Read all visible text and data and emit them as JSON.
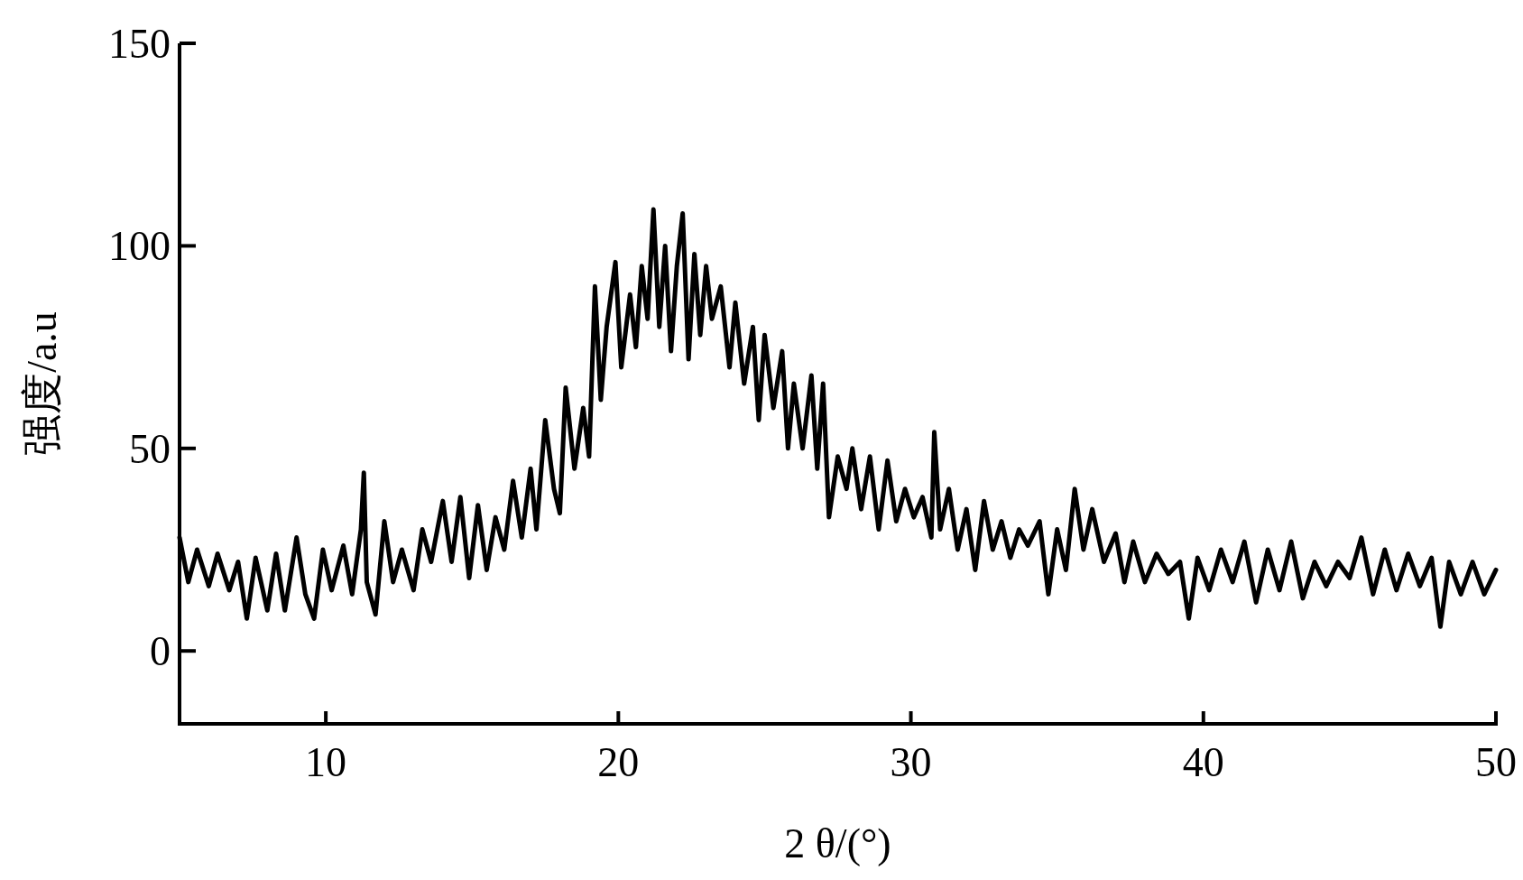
{
  "chart_data": {
    "type": "line",
    "xlabel": "2 θ/(°)",
    "ylabel": "强度/a.u",
    "xlim": [
      5,
      50
    ],
    "ylim": [
      -18,
      150
    ],
    "xticks": [
      10,
      20,
      30,
      40,
      50
    ],
    "yticks": [
      0,
      50,
      100,
      150
    ],
    "grid": false,
    "marker": "none",
    "line_style": "solid",
    "series": [
      {
        "color": "#000000",
        "x": [
          5.0,
          5.3,
          5.6,
          6.0,
          6.3,
          6.7,
          7.0,
          7.3,
          7.6,
          8.0,
          8.3,
          8.6,
          9.0,
          9.3,
          9.6,
          9.9,
          10.2,
          10.6,
          10.9,
          11.2,
          11.3,
          11.4,
          11.7,
          12.0,
          12.3,
          12.6,
          13.0,
          13.3,
          13.6,
          14.0,
          14.3,
          14.6,
          14.9,
          15.2,
          15.5,
          15.8,
          16.1,
          16.4,
          16.7,
          17.0,
          17.2,
          17.5,
          17.8,
          18.0,
          18.2,
          18.5,
          18.8,
          19.0,
          19.2,
          19.4,
          19.6,
          19.9,
          20.1,
          20.4,
          20.6,
          20.8,
          21.0,
          21.2,
          21.4,
          21.6,
          21.8,
          22.0,
          22.2,
          22.4,
          22.6,
          22.8,
          23.0,
          23.2,
          23.5,
          23.8,
          24.0,
          24.3,
          24.6,
          24.8,
          25.0,
          25.3,
          25.6,
          25.8,
          26.0,
          26.3,
          26.6,
          26.8,
          27.0,
          27.2,
          27.5,
          27.8,
          28.0,
          28.3,
          28.6,
          28.9,
          29.2,
          29.5,
          29.8,
          30.1,
          30.4,
          30.7,
          30.8,
          31.0,
          31.3,
          31.6,
          31.9,
          32.2,
          32.5,
          32.8,
          33.1,
          33.4,
          33.7,
          34.0,
          34.4,
          34.7,
          35.0,
          35.3,
          35.6,
          35.9,
          36.2,
          36.6,
          37.0,
          37.3,
          37.6,
          38.0,
          38.4,
          38.8,
          39.2,
          39.5,
          39.8,
          40.2,
          40.6,
          41.0,
          41.4,
          41.8,
          42.2,
          42.6,
          43.0,
          43.4,
          43.8,
          44.2,
          44.6,
          45.0,
          45.4,
          45.8,
          46.2,
          46.6,
          47.0,
          47.4,
          47.8,
          48.1,
          48.4,
          48.8,
          49.2,
          49.6,
          50.0
        ],
        "values": [
          28,
          17,
          25,
          16,
          24,
          15,
          22,
          8,
          23,
          10,
          24,
          10,
          28,
          14,
          8,
          25,
          15,
          26,
          14,
          30,
          44,
          17,
          9,
          32,
          17,
          25,
          15,
          30,
          22,
          37,
          22,
          38,
          18,
          36,
          20,
          33,
          25,
          42,
          28,
          45,
          30,
          57,
          40,
          34,
          65,
          45,
          60,
          48,
          90,
          62,
          80,
          96,
          70,
          88,
          75,
          95,
          82,
          109,
          80,
          100,
          74,
          95,
          108,
          72,
          98,
          78,
          95,
          82,
          90,
          70,
          86,
          66,
          80,
          57,
          78,
          60,
          74,
          50,
          66,
          50,
          68,
          45,
          66,
          33,
          48,
          40,
          50,
          35,
          48,
          30,
          47,
          32,
          40,
          33,
          38,
          28,
          54,
          30,
          40,
          25,
          35,
          20,
          37,
          25,
          32,
          23,
          30,
          26,
          32,
          14,
          30,
          20,
          40,
          25,
          35,
          22,
          29,
          17,
          27,
          17,
          24,
          19,
          22,
          8,
          23,
          15,
          25,
          17,
          27,
          12,
          25,
          15,
          27,
          13,
          22,
          16,
          22,
          18,
          28,
          14,
          25,
          15,
          24,
          16,
          23,
          6,
          22,
          14,
          22,
          14,
          20
        ]
      }
    ]
  }
}
